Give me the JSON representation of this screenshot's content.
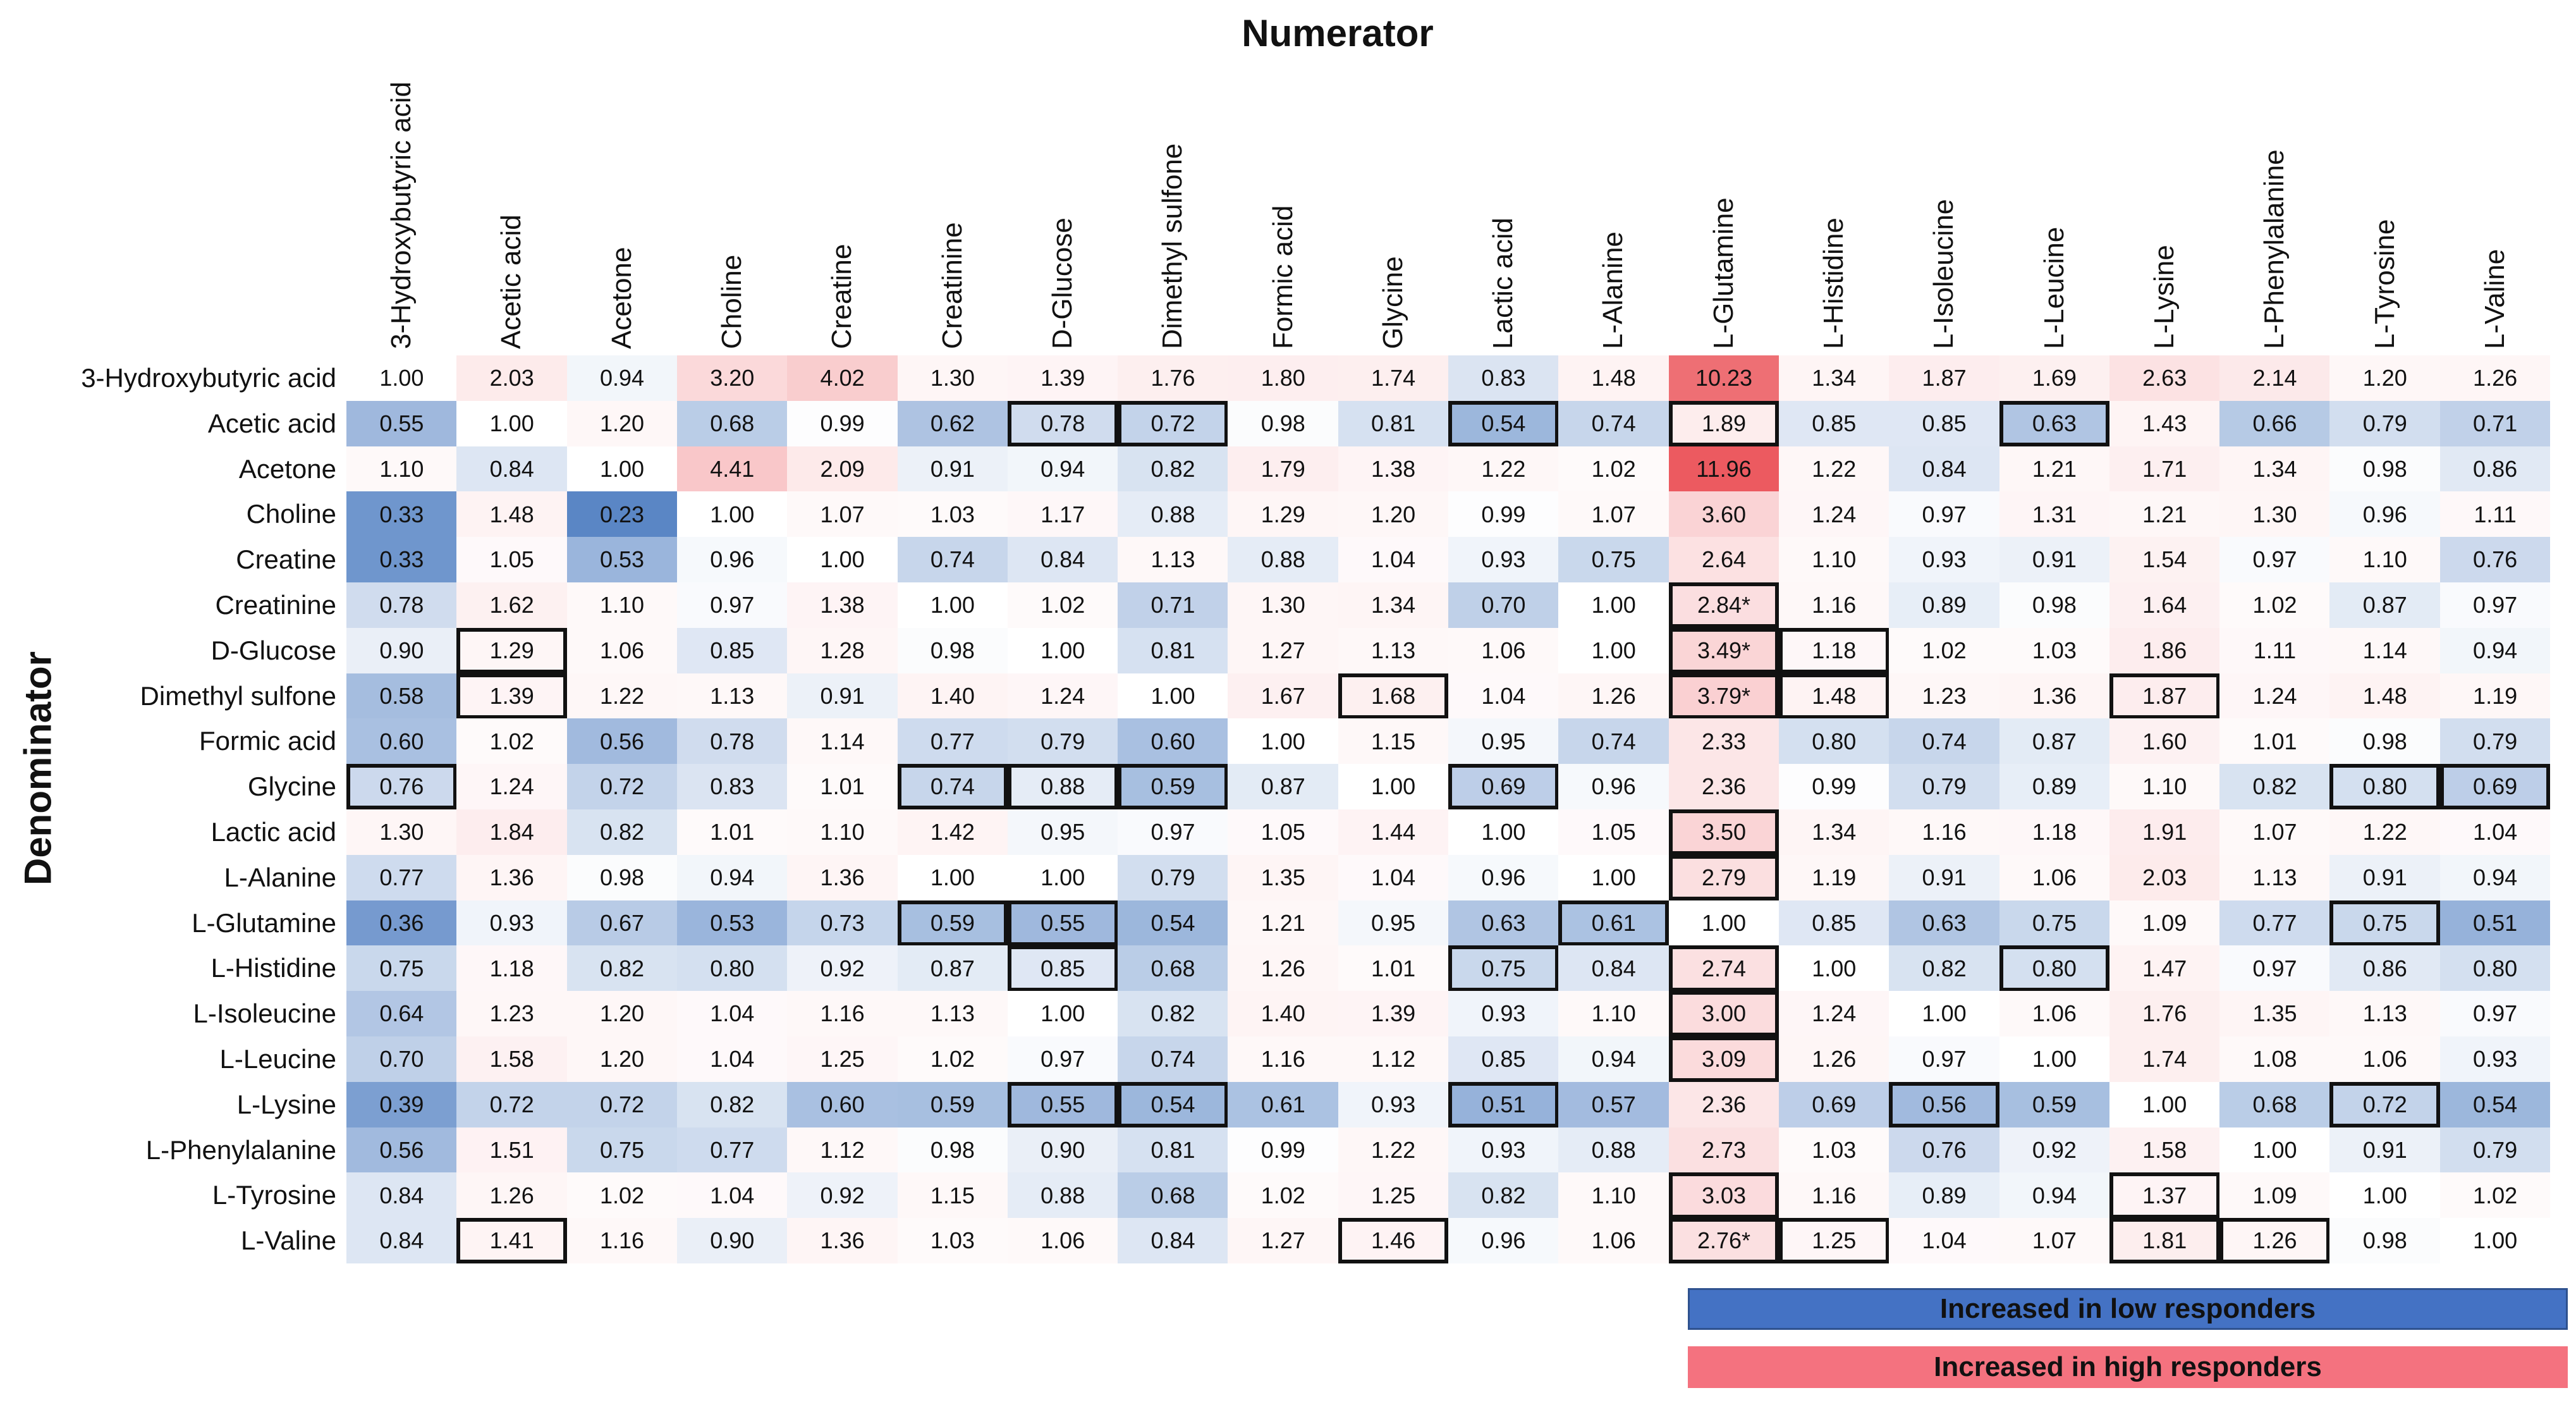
{
  "chart_data": {
    "type": "heatmap",
    "title": "Numerator",
    "xlabel": "Numerator",
    "ylabel": "Denominator",
    "columns": [
      "3-Hydroxybutyric acid",
      "Acetic acid",
      "Acetone",
      "Choline",
      "Creatine",
      "Creatinine",
      "D-Glucose",
      "Dimethyl sulfone",
      "Formic acid",
      "Glycine",
      "Lactic acid",
      "L-Alanine",
      "L-Glutamine",
      "L-Histidine",
      "L-Isoleucine",
      "L-Leucine",
      "L-Lysine",
      "L-Phenylalanine",
      "L-Tyrosine",
      "L-Valine"
    ],
    "rows": [
      "3-Hydroxybutyric acid",
      "Acetic acid",
      "Acetone",
      "Choline",
      "Creatine",
      "Creatinine",
      "D-Glucose",
      "Dimethyl sulfone",
      "Formic acid",
      "Glycine",
      "Lactic acid",
      "L-Alanine",
      "L-Glutamine",
      "L-Histidine",
      "L-Isoleucine",
      "L-Leucine",
      "L-Lysine",
      "L-Phenylalanine",
      "L-Tyrosine",
      "L-Valine"
    ],
    "values": [
      [
        "1.00",
        "2.03",
        "0.94",
        "3.20",
        "4.02",
        "1.30",
        "1.39",
        "1.76",
        "1.80",
        "1.74",
        "0.83",
        "1.48",
        "10.23",
        "1.34",
        "1.87",
        "1.69",
        "2.63",
        "2.14",
        "1.20",
        "1.26"
      ],
      [
        "0.55",
        "1.00",
        "1.20",
        "0.68",
        "0.99",
        "0.62",
        "0.78",
        "0.72",
        "0.98",
        "0.81",
        "0.54",
        "0.74",
        "1.89",
        "0.85",
        "0.85",
        "0.63",
        "1.43",
        "0.66",
        "0.79",
        "0.71"
      ],
      [
        "1.10",
        "0.84",
        "1.00",
        "4.41",
        "2.09",
        "0.91",
        "0.94",
        "0.82",
        "1.79",
        "1.38",
        "1.22",
        "1.02",
        "11.96",
        "1.22",
        "0.84",
        "1.21",
        "1.71",
        "1.34",
        "0.98",
        "0.86"
      ],
      [
        "0.33",
        "1.48",
        "0.23",
        "1.00",
        "1.07",
        "1.03",
        "1.17",
        "0.88",
        "1.29",
        "1.20",
        "0.99",
        "1.07",
        "3.60",
        "1.24",
        "0.97",
        "1.31",
        "1.21",
        "1.30",
        "0.96",
        "1.11"
      ],
      [
        "0.33",
        "1.05",
        "0.53",
        "0.96",
        "1.00",
        "0.74",
        "0.84",
        "1.13",
        "0.88",
        "1.04",
        "0.93",
        "0.75",
        "2.64",
        "1.10",
        "0.93",
        "0.91",
        "1.54",
        "0.97",
        "1.10",
        "0.76"
      ],
      [
        "0.78",
        "1.62",
        "1.10",
        "0.97",
        "1.38",
        "1.00",
        "1.02",
        "0.71",
        "1.30",
        "1.34",
        "0.70",
        "1.00",
        "2.84*",
        "1.16",
        "0.89",
        "0.98",
        "1.64",
        "1.02",
        "0.87",
        "0.97"
      ],
      [
        "0.90",
        "1.29",
        "1.06",
        "0.85",
        "1.28",
        "0.98",
        "1.00",
        "0.81",
        "1.27",
        "1.13",
        "1.06",
        "1.00",
        "3.49*",
        "1.18",
        "1.02",
        "1.03",
        "1.86",
        "1.11",
        "1.14",
        "0.94"
      ],
      [
        "0.58",
        "1.39",
        "1.22",
        "1.13",
        "0.91",
        "1.40",
        "1.24",
        "1.00",
        "1.67",
        "1.68",
        "1.04",
        "1.26",
        "3.79*",
        "1.48",
        "1.23",
        "1.36",
        "1.87",
        "1.24",
        "1.48",
        "1.19"
      ],
      [
        "0.60",
        "1.02",
        "0.56",
        "0.78",
        "1.14",
        "0.77",
        "0.79",
        "0.60",
        "1.00",
        "1.15",
        "0.95",
        "0.74",
        "2.33",
        "0.80",
        "0.74",
        "0.87",
        "1.60",
        "1.01",
        "0.98",
        "0.79"
      ],
      [
        "0.76",
        "1.24",
        "0.72",
        "0.83",
        "1.01",
        "0.74",
        "0.88",
        "0.59",
        "0.87",
        "1.00",
        "0.69",
        "0.96",
        "2.36",
        "0.99",
        "0.79",
        "0.89",
        "1.10",
        "0.82",
        "0.80",
        "0.69"
      ],
      [
        "1.30",
        "1.84",
        "0.82",
        "1.01",
        "1.10",
        "1.42",
        "0.95",
        "0.97",
        "1.05",
        "1.44",
        "1.00",
        "1.05",
        "3.50",
        "1.34",
        "1.16",
        "1.18",
        "1.91",
        "1.07",
        "1.22",
        "1.04"
      ],
      [
        "0.77",
        "1.36",
        "0.98",
        "0.94",
        "1.36",
        "1.00",
        "1.00",
        "0.79",
        "1.35",
        "1.04",
        "0.96",
        "1.00",
        "2.79",
        "1.19",
        "0.91",
        "1.06",
        "2.03",
        "1.13",
        "0.91",
        "0.94"
      ],
      [
        "0.36",
        "0.93",
        "0.67",
        "0.53",
        "0.73",
        "0.59",
        "0.55",
        "0.54",
        "1.21",
        "0.95",
        "0.63",
        "0.61",
        "1.00",
        "0.85",
        "0.63",
        "0.75",
        "1.09",
        "0.77",
        "0.75",
        "0.51"
      ],
      [
        "0.75",
        "1.18",
        "0.82",
        "0.80",
        "0.92",
        "0.87",
        "0.85",
        "0.68",
        "1.26",
        "1.01",
        "0.75",
        "0.84",
        "2.74",
        "1.00",
        "0.82",
        "0.80",
        "1.47",
        "0.97",
        "0.86",
        "0.80"
      ],
      [
        "0.64",
        "1.23",
        "1.20",
        "1.04",
        "1.16",
        "1.13",
        "1.00",
        "0.82",
        "1.40",
        "1.39",
        "0.93",
        "1.10",
        "3.00",
        "1.24",
        "1.00",
        "1.06",
        "1.76",
        "1.35",
        "1.13",
        "0.97"
      ],
      [
        "0.70",
        "1.58",
        "1.20",
        "1.04",
        "1.25",
        "1.02",
        "0.97",
        "0.74",
        "1.16",
        "1.12",
        "0.85",
        "0.94",
        "3.09",
        "1.26",
        "0.97",
        "1.00",
        "1.74",
        "1.08",
        "1.06",
        "0.93"
      ],
      [
        "0.39",
        "0.72",
        "0.72",
        "0.82",
        "0.60",
        "0.59",
        "0.55",
        "0.54",
        "0.61",
        "0.93",
        "0.51",
        "0.57",
        "2.36",
        "0.69",
        "0.56",
        "0.59",
        "1.00",
        "0.68",
        "0.72",
        "0.54"
      ],
      [
        "0.56",
        "1.51",
        "0.75",
        "0.77",
        "1.12",
        "0.98",
        "0.90",
        "0.81",
        "0.99",
        "1.22",
        "0.93",
        "0.88",
        "2.73",
        "1.03",
        "0.76",
        "0.92",
        "1.58",
        "1.00",
        "0.91",
        "0.79"
      ],
      [
        "0.84",
        "1.26",
        "1.02",
        "1.04",
        "0.92",
        "1.15",
        "0.88",
        "0.68",
        "1.02",
        "1.25",
        "0.82",
        "1.10",
        "3.03",
        "1.16",
        "0.89",
        "0.94",
        "1.37",
        "1.09",
        "1.00",
        "1.02"
      ],
      [
        "0.84",
        "1.41",
        "1.16",
        "0.90",
        "1.36",
        "1.03",
        "1.06",
        "0.84",
        "1.27",
        "1.46",
        "0.96",
        "1.06",
        "2.76*",
        "1.25",
        "1.04",
        "1.07",
        "1.81",
        "1.26",
        "0.98",
        "1.00"
      ]
    ],
    "boxed_cells": [
      [
        1,
        6
      ],
      [
        1,
        7
      ],
      [
        1,
        10
      ],
      [
        1,
        12
      ],
      [
        1,
        15
      ],
      [
        5,
        12
      ],
      [
        6,
        1
      ],
      [
        6,
        12
      ],
      [
        6,
        13
      ],
      [
        7,
        1
      ],
      [
        7,
        9
      ],
      [
        7,
        12
      ],
      [
        7,
        13
      ],
      [
        7,
        16
      ],
      [
        9,
        0
      ],
      [
        9,
        5
      ],
      [
        9,
        6
      ],
      [
        9,
        7
      ],
      [
        9,
        10
      ],
      [
        9,
        18
      ],
      [
        9,
        19
      ],
      [
        10,
        12
      ],
      [
        11,
        12
      ],
      [
        12,
        5
      ],
      [
        12,
        6
      ],
      [
        12,
        11
      ],
      [
        12,
        18
      ],
      [
        13,
        6
      ],
      [
        13,
        10
      ],
      [
        13,
        12
      ],
      [
        13,
        15
      ],
      [
        14,
        12
      ],
      [
        15,
        12
      ],
      [
        16,
        6
      ],
      [
        16,
        7
      ],
      [
        16,
        10
      ],
      [
        16,
        14
      ],
      [
        16,
        18
      ],
      [
        18,
        12
      ],
      [
        18,
        16
      ],
      [
        19,
        1
      ],
      [
        19,
        9
      ],
      [
        19,
        12
      ],
      [
        19,
        13
      ],
      [
        19,
        16
      ],
      [
        19,
        17
      ]
    ],
    "color_scale": {
      "low": "#5a86c5",
      "neutral": "#ffffff",
      "high": "#ec5a60"
    },
    "legend": [
      {
        "label": "Increased in low responders",
        "color": "#4472c4"
      },
      {
        "label": "Increased in high responders",
        "color": "#f4727f"
      }
    ]
  }
}
